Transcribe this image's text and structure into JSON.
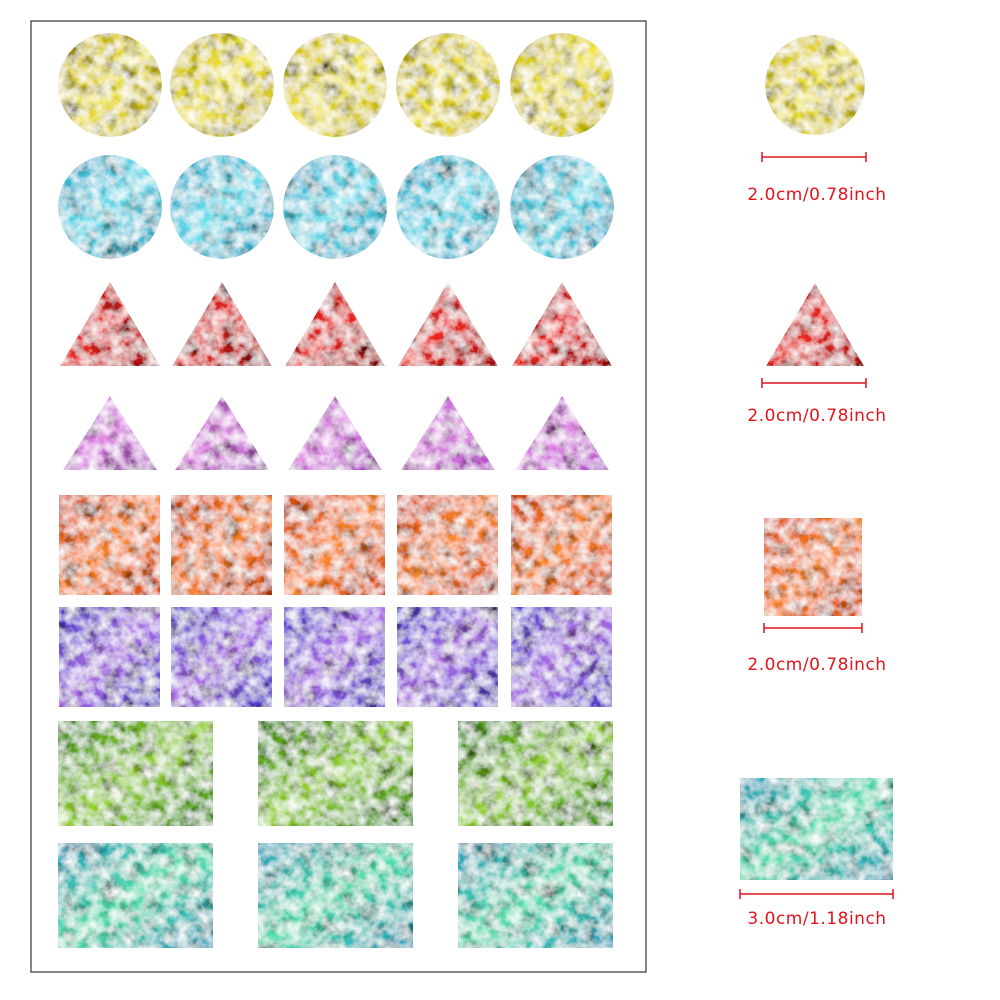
{
  "size_labels": [
    "2.0cm/0.78inch",
    "2.0cm/0.78inch",
    "2.0cm/0.78inch",
    "3.0cm/1.18inch"
  ]
}
